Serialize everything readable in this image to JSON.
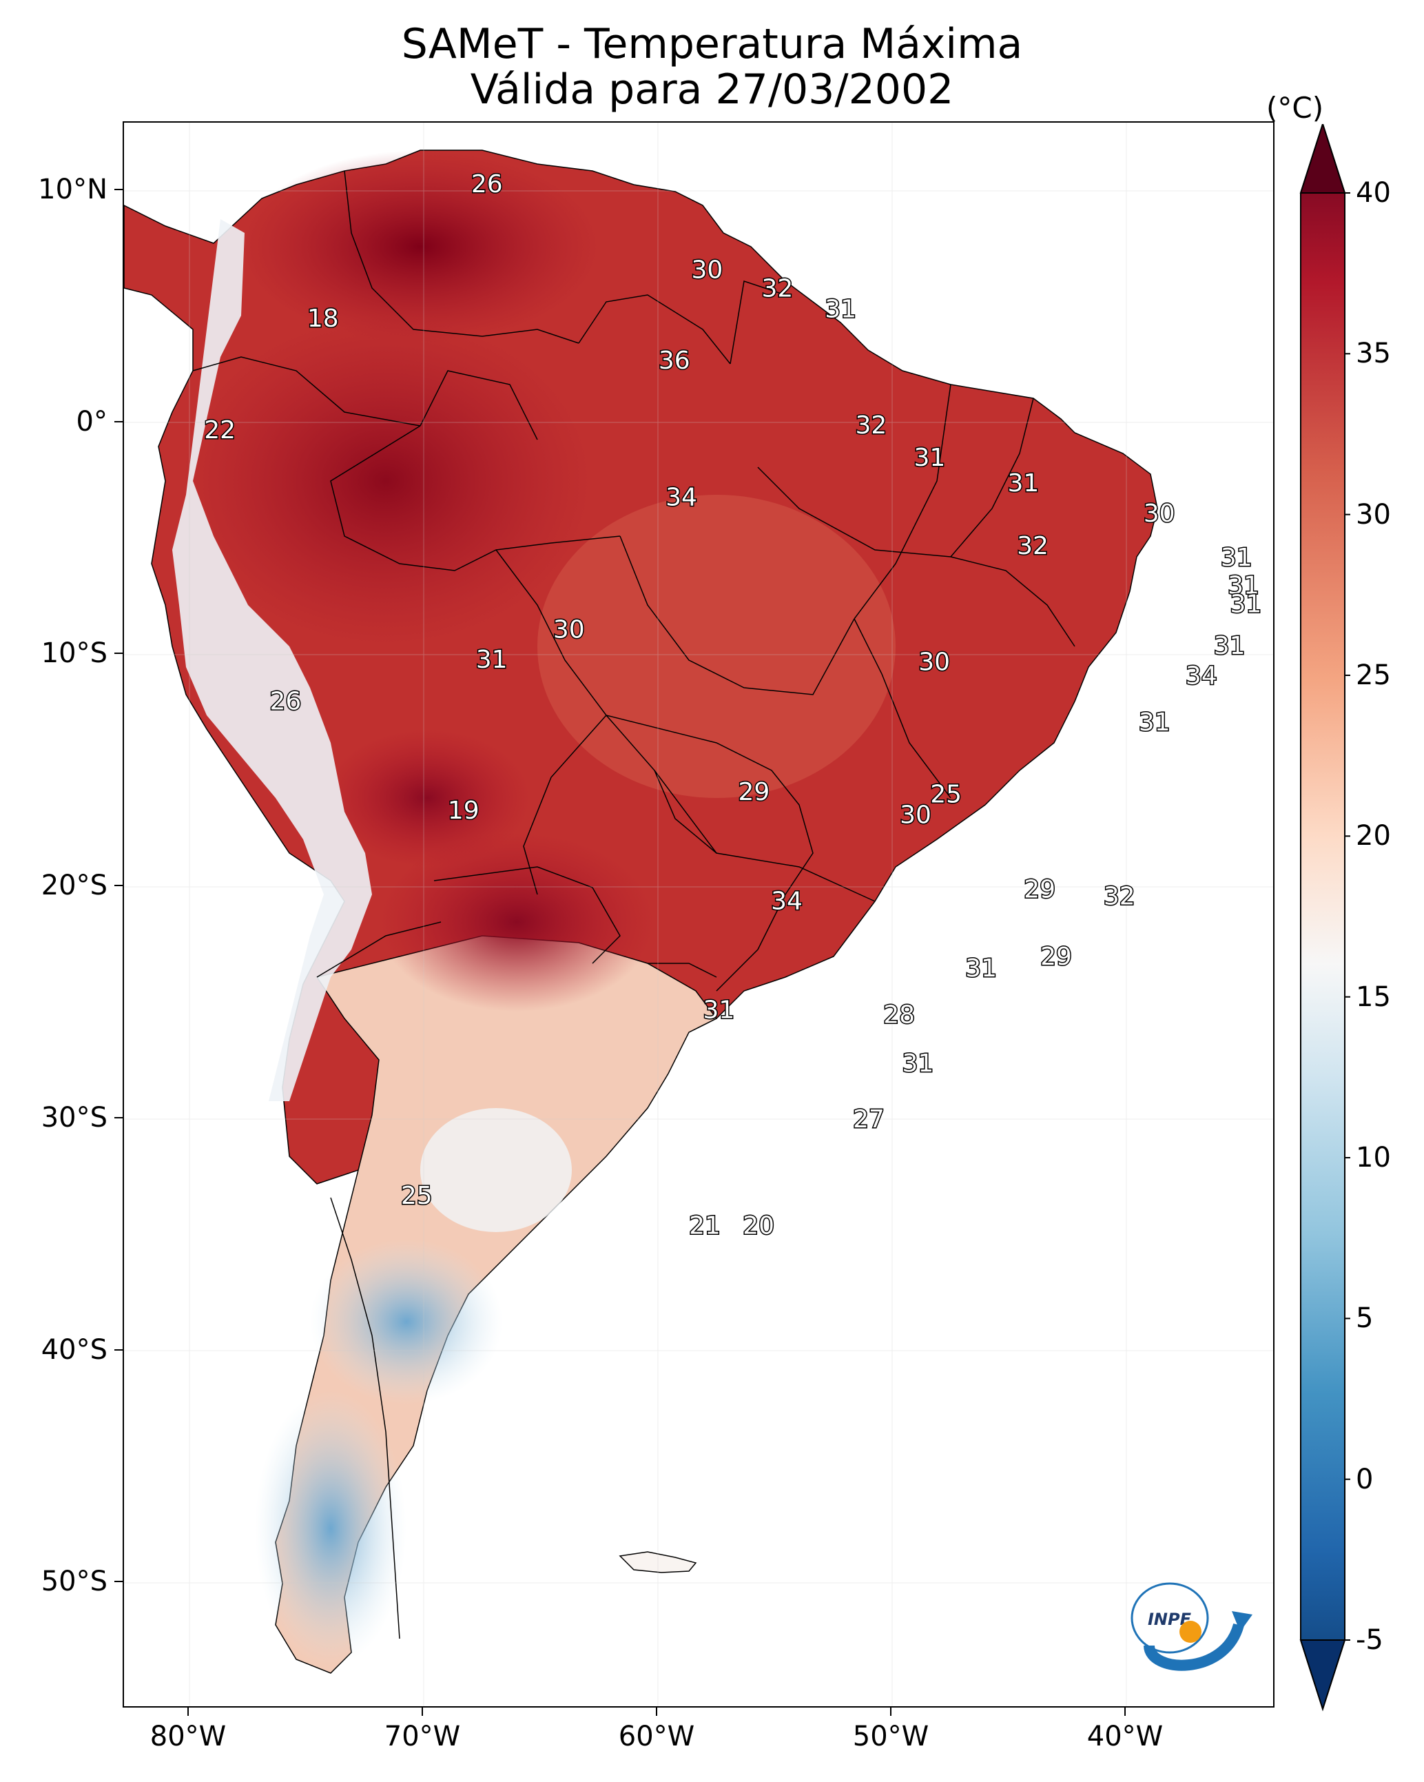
{
  "title": {
    "line1": "SAMeT - Temperatura Máxima",
    "line2": "Válida para 27/03/2002"
  },
  "colorbar": {
    "unit": "(°C)",
    "ticks": [
      "40",
      "35",
      "30",
      "25",
      "20",
      "15",
      "10",
      "5",
      "0",
      "-5"
    ],
    "min": -5,
    "max": 40,
    "colors": [
      "#08306b",
      "#2166ac",
      "#4393c3",
      "#92c5de",
      "#d1e5f0",
      "#f7f7f7",
      "#fddbc7",
      "#f4a582",
      "#d6604d",
      "#b2182b",
      "#67001f"
    ]
  },
  "axes": {
    "lat_labels": [
      "10°N",
      "0°",
      "10°S",
      "20°S",
      "30°S",
      "40°S",
      "50°S"
    ],
    "lon_labels": [
      "80°W",
      "70°W",
      "60°W",
      "50°W",
      "40°W"
    ]
  },
  "labels": [
    {
      "lon": -67.3,
      "lat": 10.3,
      "text": "26"
    },
    {
      "lon": -74.3,
      "lat": 4.5,
      "text": "18"
    },
    {
      "lon": -57.9,
      "lat": 6.6,
      "text": "30"
    },
    {
      "lon": -54.9,
      "lat": 5.8,
      "text": "32"
    },
    {
      "lon": -52.2,
      "lat": 4.9,
      "text": "31"
    },
    {
      "lon": -59.3,
      "lat": 2.7,
      "text": "36"
    },
    {
      "lon": -78.7,
      "lat": -0.3,
      "text": "22"
    },
    {
      "lon": -50.9,
      "lat": -0.1,
      "text": "32"
    },
    {
      "lon": -48.4,
      "lat": -1.5,
      "text": "31"
    },
    {
      "lon": -44.4,
      "lat": -2.6,
      "text": "31"
    },
    {
      "lon": -38.6,
      "lat": -3.9,
      "text": "30"
    },
    {
      "lon": -59.0,
      "lat": -3.2,
      "text": "34"
    },
    {
      "lon": -44.0,
      "lat": -5.3,
      "text": "32"
    },
    {
      "lon": -35.3,
      "lat": -5.8,
      "text": "31"
    },
    {
      "lon": -35.0,
      "lat": -7.0,
      "text": "31"
    },
    {
      "lon": -34.9,
      "lat": -7.8,
      "text": "31"
    },
    {
      "lon": -63.8,
      "lat": -8.9,
      "text": "30"
    },
    {
      "lon": -67.1,
      "lat": -10.2,
      "text": "31"
    },
    {
      "lon": -48.2,
      "lat": -10.3,
      "text": "30"
    },
    {
      "lon": -35.6,
      "lat": -9.6,
      "text": "31"
    },
    {
      "lon": -36.8,
      "lat": -10.9,
      "text": "34"
    },
    {
      "lon": -75.9,
      "lat": -12.0,
      "text": "26"
    },
    {
      "lon": -38.8,
      "lat": -12.9,
      "text": "31"
    },
    {
      "lon": -55.9,
      "lat": -15.9,
      "text": "29"
    },
    {
      "lon": -47.7,
      "lat": -16.0,
      "text": "25"
    },
    {
      "lon": -49.0,
      "lat": -16.9,
      "text": "30"
    },
    {
      "lon": -68.3,
      "lat": -16.7,
      "text": "19"
    },
    {
      "lon": -43.7,
      "lat": -20.1,
      "text": "29"
    },
    {
      "lon": -40.3,
      "lat": -20.4,
      "text": "32"
    },
    {
      "lon": -54.5,
      "lat": -20.6,
      "text": "34"
    },
    {
      "lon": -43.0,
      "lat": -23.0,
      "text": "29"
    },
    {
      "lon": -46.2,
      "lat": -23.5,
      "text": "31"
    },
    {
      "lon": -49.7,
      "lat": -25.5,
      "text": "28"
    },
    {
      "lon": -57.4,
      "lat": -25.3,
      "text": "31"
    },
    {
      "lon": -48.9,
      "lat": -27.6,
      "text": "31"
    },
    {
      "lon": -51.0,
      "lat": -30.0,
      "text": "27"
    },
    {
      "lon": -70.3,
      "lat": -33.3,
      "text": "25"
    },
    {
      "lon": -58.0,
      "lat": -34.6,
      "text": "21"
    },
    {
      "lon": -55.7,
      "lat": -34.6,
      "text": "20"
    }
  ]
}
